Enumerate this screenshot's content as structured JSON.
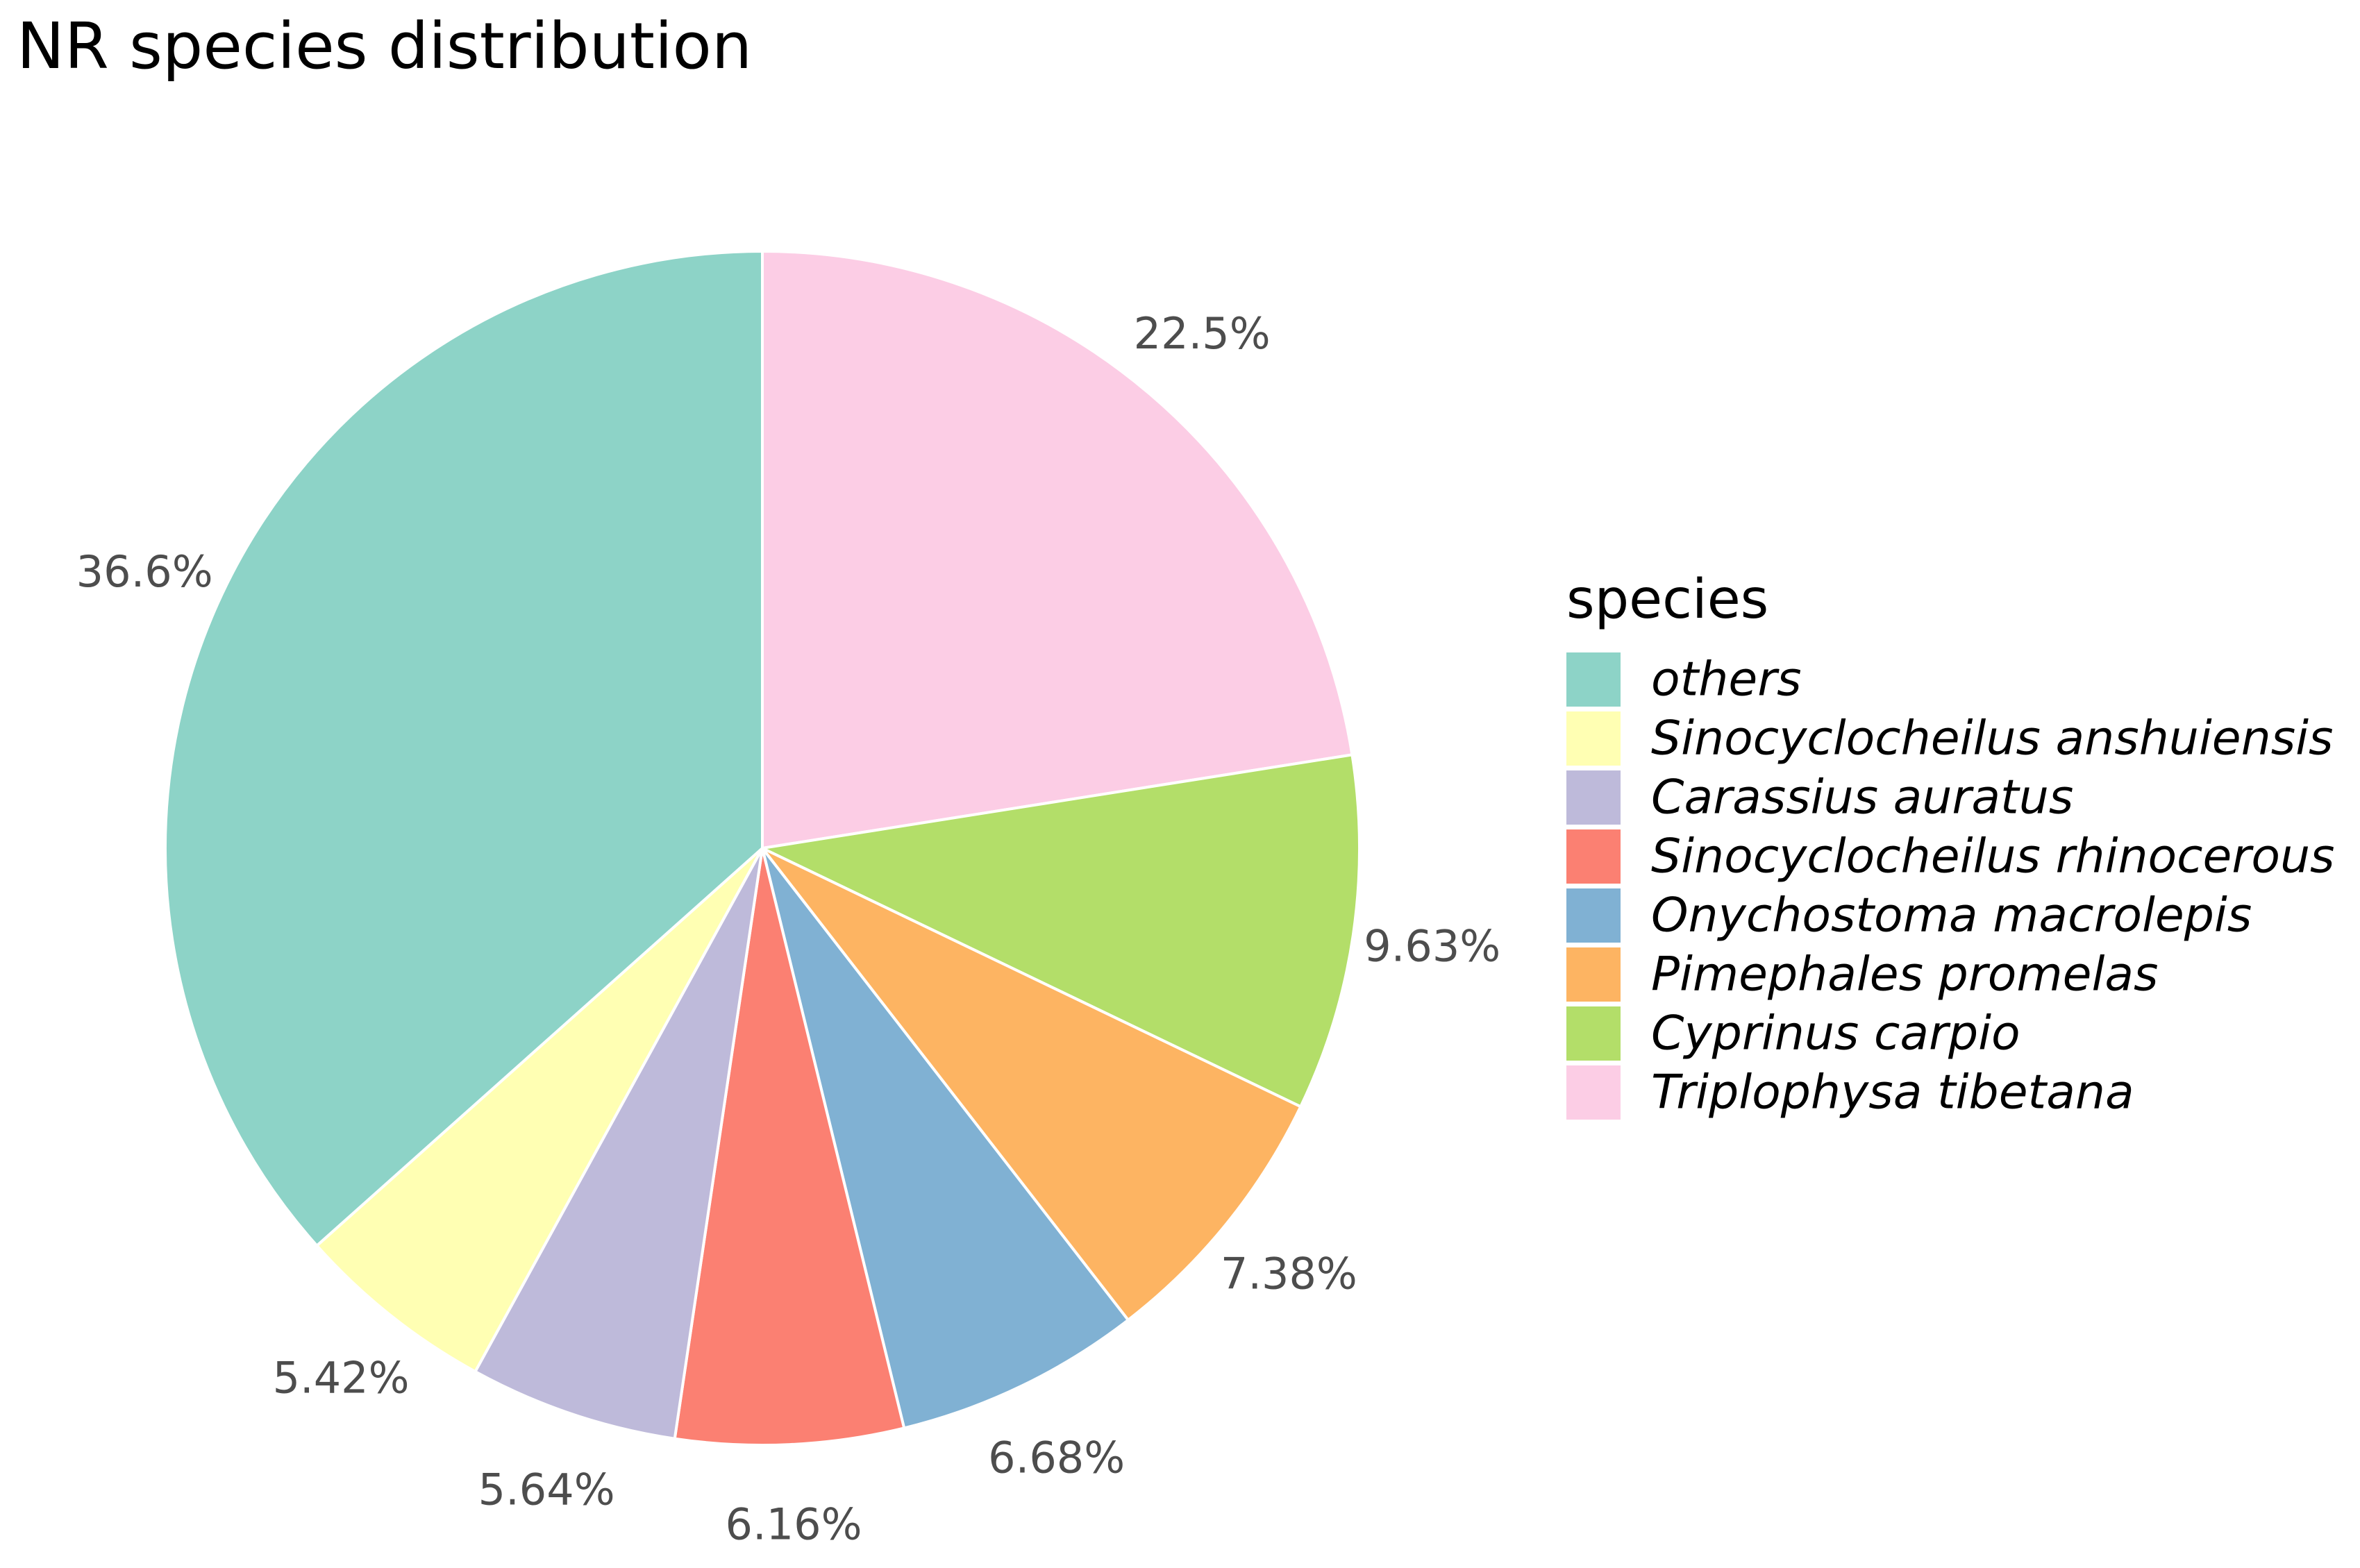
{
  "chart_data": {
    "type": "pie",
    "title": "NR species distribution",
    "legend_title": "species",
    "legend_position": "right",
    "start_angle": "12 o'clock",
    "direction": "clockwise",
    "slices": [
      {
        "name": "Triplophysa tibetana",
        "value": 22.5,
        "label": "22.5%",
        "color": "#FCCDE5"
      },
      {
        "name": "Cyprinus carpio",
        "value": 9.63,
        "label": "9.63%",
        "color": "#B3DE69"
      },
      {
        "name": "Pimephales promelas",
        "value": 7.38,
        "label": "7.38%",
        "color": "#FDB462"
      },
      {
        "name": "Onychostoma macrolepis",
        "value": 6.68,
        "label": "6.68%",
        "color": "#80B1D3"
      },
      {
        "name": "Sinocyclocheilus rhinocerous",
        "value": 6.16,
        "label": "6.16%",
        "color": "#FB8072"
      },
      {
        "name": "Carassius auratus",
        "value": 5.64,
        "label": "5.64%",
        "color": "#BEBADA"
      },
      {
        "name": "Sinocyclocheilus anshuiensis",
        "value": 5.42,
        "label": "5.42%",
        "color": "#FFFFB3"
      },
      {
        "name": "others",
        "value": 36.6,
        "label": "36.6%",
        "color": "#8DD3C7"
      }
    ],
    "legend_order": [
      "others",
      "Sinocyclocheilus anshuiensis",
      "Carassius auratus",
      "Sinocyclocheilus rhinocerous",
      "Onychostoma macrolepis",
      "Pimephales promelas",
      "Cyprinus carpio",
      "Triplophysa tibetana"
    ]
  }
}
